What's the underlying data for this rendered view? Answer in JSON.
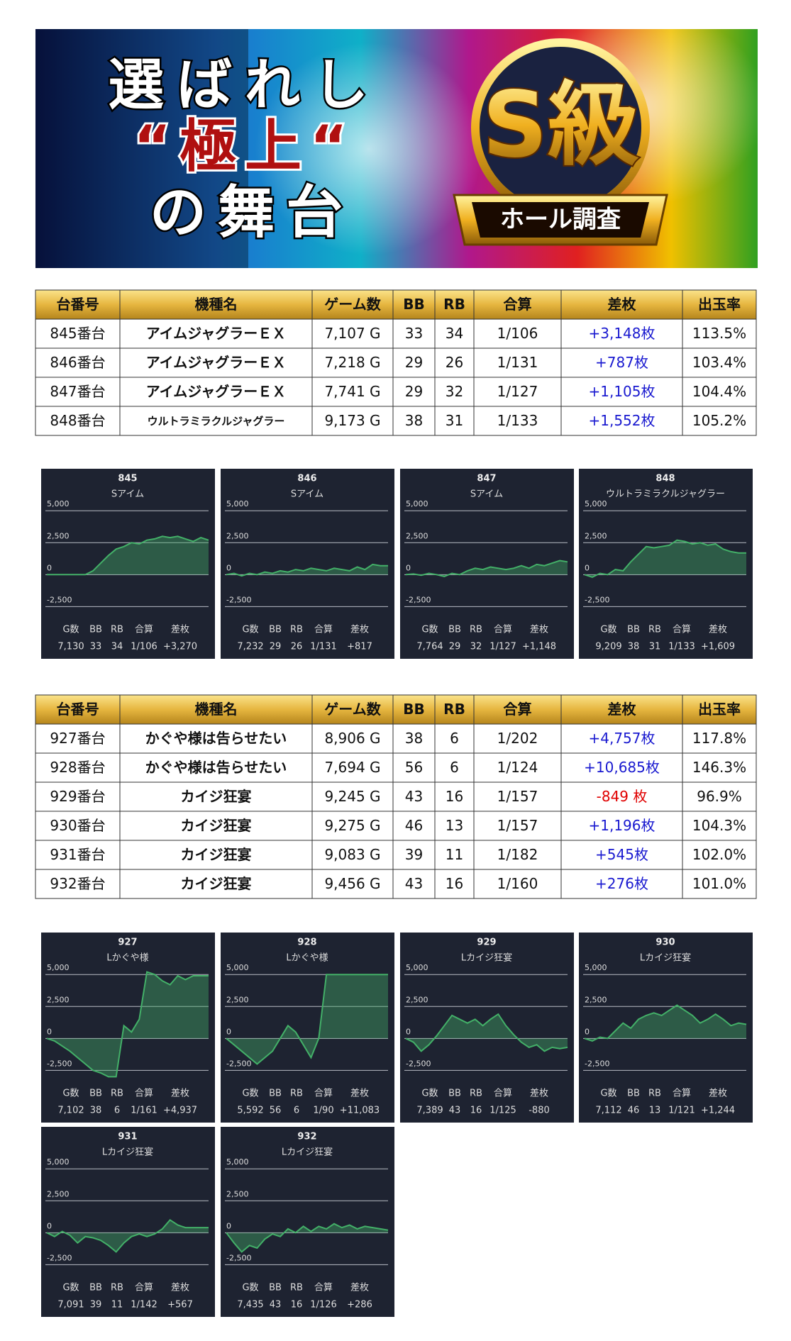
{
  "banner": {
    "title_lines": [
      "選ばれし",
      "“極上“",
      "の舞台"
    ],
    "badge": "S級",
    "badge_sub": "ホール調査"
  },
  "diff_colors": {
    "positive": "#1a1ad0",
    "negative": "#e00000"
  },
  "tables": [
    {
      "header": [
        "台番号",
        "機種名",
        "ゲーム数",
        "BB",
        "RB",
        "合算",
        "差枚",
        "出玉率"
      ],
      "rows": [
        [
          "845番台",
          "アイムジャグラーＥＸ",
          "7,107 G",
          "33",
          "34",
          "1/106",
          "+3,148枚",
          "113.5%"
        ],
        [
          "846番台",
          "アイムジャグラーＥＸ",
          "7,218 G",
          "29",
          "26",
          "1/131",
          "+787枚",
          "103.4%"
        ],
        [
          "847番台",
          "アイムジャグラーＥＸ",
          "7,741 G",
          "29",
          "32",
          "1/127",
          "+1,105枚",
          "104.4%"
        ],
        [
          "848番台",
          "ウルトラミラクルジャグラー",
          "9,173 G",
          "38",
          "31",
          "1/133",
          "+1,552枚",
          "105.2%"
        ]
      ]
    },
    {
      "header": [
        "台番号",
        "機種名",
        "ゲーム数",
        "BB",
        "RB",
        "合算",
        "差枚",
        "出玉率"
      ],
      "rows": [
        [
          "927番台",
          "かぐや様は告らせたい",
          "8,906 G",
          "38",
          "6",
          "1/202",
          "+4,757枚",
          "117.8%"
        ],
        [
          "928番台",
          "かぐや様は告らせたい",
          "7,694 G",
          "56",
          "6",
          "1/124",
          "+10,685枚",
          "146.3%"
        ],
        [
          "929番台",
          "カイジ狂宴",
          "9,245 G",
          "43",
          "16",
          "1/157",
          "-849 枚",
          "96.9%"
        ],
        [
          "930番台",
          "カイジ狂宴",
          "9,275 G",
          "46",
          "13",
          "1/157",
          "+1,196枚",
          "104.3%"
        ],
        [
          "931番台",
          "カイジ狂宴",
          "9,083 G",
          "39",
          "11",
          "1/182",
          "+545枚",
          "102.0%"
        ],
        [
          "932番台",
          "カイジ狂宴",
          "9,456 G",
          "43",
          "16",
          "1/160",
          "+276枚",
          "101.0%"
        ]
      ]
    }
  ],
  "chart_data": [
    {
      "type": "line",
      "title": "845",
      "subtitle": "Sアイム",
      "color": "#43b068",
      "ylim": [
        -3200,
        5400
      ],
      "yticks": [
        {
          "value": 5000,
          "label": "5,000"
        },
        {
          "value": 2500,
          "label": "2,500"
        },
        0,
        {
          "value": -2500,
          "label": "-2,500"
        }
      ],
      "values": [
        0,
        0,
        0,
        0,
        0,
        0,
        300,
        900,
        1500,
        2000,
        2200,
        2500,
        2400,
        2700,
        2800,
        3000,
        2900,
        3000,
        2800,
        2600,
        2900,
        2700
      ],
      "stats_header": [
        "G数",
        "BB",
        "RB",
        "合算",
        "差枚"
      ],
      "stats": [
        "7,130",
        "33",
        "34",
        "1/106",
        "+3,270"
      ]
    },
    {
      "type": "line",
      "title": "846",
      "subtitle": "Sアイム",
      "color": "#43b068",
      "ylim": [
        -3200,
        5400
      ],
      "yticks": [
        {
          "value": 5000,
          "label": "5,000"
        },
        {
          "value": 2500,
          "label": "2,500"
        },
        0,
        {
          "value": -2500,
          "label": "-2,500"
        }
      ],
      "values": [
        0,
        100,
        -100,
        100,
        0,
        200,
        100,
        300,
        200,
        400,
        300,
        500,
        400,
        300,
        500,
        400,
        300,
        600,
        400,
        800,
        700,
        700
      ],
      "stats_header": [
        "G数",
        "BB",
        "RB",
        "合算",
        "差枚"
      ],
      "stats": [
        "7,232",
        "29",
        "26",
        "1/131",
        "+817"
      ]
    },
    {
      "type": "line",
      "title": "847",
      "subtitle": "Sアイム",
      "color": "#43b068",
      "ylim": [
        -3200,
        5400
      ],
      "yticks": [
        {
          "value": 5000,
          "label": "5,000"
        },
        {
          "value": 2500,
          "label": "2,500"
        },
        0,
        {
          "value": -2500,
          "label": "-2,500"
        }
      ],
      "values": [
        0,
        50,
        -50,
        100,
        0,
        -150,
        100,
        0,
        300,
        500,
        400,
        600,
        500,
        400,
        500,
        700,
        500,
        800,
        700,
        900,
        1100,
        1000
      ],
      "stats_header": [
        "G数",
        "BB",
        "RB",
        "合算",
        "差枚"
      ],
      "stats": [
        "7,764",
        "29",
        "32",
        "1/127",
        "+1,148"
      ]
    },
    {
      "type": "line",
      "title": "848",
      "subtitle": "ウルトラミラクルジャグラー",
      "color": "#43b068",
      "ylim": [
        -3200,
        5400
      ],
      "yticks": [
        {
          "value": 5000,
          "label": "5,000"
        },
        {
          "value": 2500,
          "label": "2,500"
        },
        0,
        {
          "value": -2500,
          "label": "-2,500"
        }
      ],
      "values": [
        0,
        -200,
        100,
        0,
        400,
        300,
        1000,
        1600,
        2200,
        2100,
        2200,
        2300,
        2700,
        2600,
        2400,
        2500,
        2300,
        2400,
        2000,
        1800,
        1700,
        1700
      ],
      "stats_header": [
        "G数",
        "BB",
        "RB",
        "合算",
        "差枚"
      ],
      "stats": [
        "9,209",
        "38",
        "31",
        "1/133",
        "+1,609"
      ]
    },
    {
      "type": "line",
      "title": "927",
      "subtitle": "Lかぐや様",
      "color": "#43b068",
      "ylim": [
        -3200,
        5400
      ],
      "yticks": [
        {
          "value": 5000,
          "label": "5,000"
        },
        {
          "value": 2500,
          "label": "2,500"
        },
        0,
        {
          "value": -2500,
          "label": "-2,500"
        }
      ],
      "values": [
        0,
        -200,
        -600,
        -1000,
        -1500,
        -2000,
        -2500,
        -2700,
        -3000,
        -3000,
        1000,
        500,
        1500,
        5200,
        5000,
        4500,
        4200,
        4900,
        4600,
        4900,
        4900,
        4900
      ],
      "stats_header": [
        "G数",
        "BB",
        "RB",
        "合算",
        "差枚"
      ],
      "stats": [
        "7,102",
        "38",
        "6",
        "1/161",
        "+4,937"
      ]
    },
    {
      "type": "line",
      "title": "928",
      "subtitle": "Lかぐや様",
      "color": "#43b068",
      "ylim": [
        -3200,
        5400
      ],
      "yticks": [
        {
          "value": 5000,
          "label": "5,000"
        },
        {
          "value": 2500,
          "label": "2,500"
        },
        0,
        {
          "value": -2500,
          "label": "-2,500"
        }
      ],
      "values": [
        0,
        -500,
        -1000,
        -1500,
        -2000,
        -1500,
        -1000,
        0,
        1000,
        500,
        -500,
        -1500,
        0,
        5000,
        5000,
        5000,
        5000,
        5000,
        5000,
        5000,
        5000,
        5000
      ],
      "stats_header": [
        "G数",
        "BB",
        "RB",
        "合算",
        "差枚"
      ],
      "stats": [
        "5,592",
        "56",
        "6",
        "1/90",
        "+11,083"
      ]
    },
    {
      "type": "line",
      "title": "929",
      "subtitle": "Lカイジ狂宴",
      "color": "#43b068",
      "ylim": [
        -3200,
        5400
      ],
      "yticks": [
        {
          "value": 5000,
          "label": "5,000"
        },
        {
          "value": 2500,
          "label": "2,500"
        },
        0,
        {
          "value": -2500,
          "label": "-2,500"
        }
      ],
      "values": [
        0,
        -300,
        -1000,
        -500,
        200,
        1000,
        1800,
        1500,
        1200,
        1500,
        1000,
        1500,
        1900,
        1000,
        300,
        -300,
        -700,
        -500,
        -1000,
        -700,
        -800,
        -700
      ],
      "stats_header": [
        "G数",
        "BB",
        "RB",
        "合算",
        "差枚"
      ],
      "stats": [
        "7,389",
        "43",
        "16",
        "1/125",
        "-880"
      ]
    },
    {
      "type": "line",
      "title": "930",
      "subtitle": "Lカイジ狂宴",
      "color": "#43b068",
      "ylim": [
        -3200,
        5400
      ],
      "yticks": [
        {
          "value": 5000,
          "label": "5,000"
        },
        {
          "value": 2500,
          "label": "2,500"
        },
        0,
        {
          "value": -2500,
          "label": "-2,500"
        }
      ],
      "values": [
        0,
        -200,
        100,
        0,
        600,
        1200,
        800,
        1500,
        1800,
        2000,
        1800,
        2200,
        2600,
        2200,
        1800,
        1200,
        1500,
        1900,
        1500,
        1000,
        1200,
        1100
      ],
      "stats_header": [
        "G数",
        "BB",
        "RB",
        "合算",
        "差枚"
      ],
      "stats": [
        "7,112",
        "46",
        "13",
        "1/121",
        "+1,244"
      ]
    },
    {
      "type": "line",
      "title": "931",
      "subtitle": "Lカイジ狂宴",
      "color": "#43b068",
      "ylim": [
        -3200,
        5400
      ],
      "yticks": [
        {
          "value": 5000,
          "label": "5,000"
        },
        {
          "value": 2500,
          "label": "2,500"
        },
        0,
        {
          "value": -2500,
          "label": "-2,500"
        }
      ],
      "values": [
        0,
        -300,
        100,
        -200,
        -800,
        -300,
        -400,
        -600,
        -1000,
        -1500,
        -800,
        -300,
        -100,
        -300,
        -100,
        300,
        1000,
        600,
        400,
        400,
        400,
        400
      ],
      "stats_header": [
        "G数",
        "BB",
        "RB",
        "合算",
        "差枚"
      ],
      "stats": [
        "7,091",
        "39",
        "11",
        "1/142",
        "+567"
      ]
    },
    {
      "type": "line",
      "title": "932",
      "subtitle": "Lカイジ狂宴",
      "color": "#43b068",
      "ylim": [
        -3200,
        5400
      ],
      "yticks": [
        {
          "value": 5000,
          "label": "5,000"
        },
        {
          "value": 2500,
          "label": "2,500"
        },
        0,
        {
          "value": -2500,
          "label": "-2,500"
        }
      ],
      "values": [
        0,
        -800,
        -1500,
        -1000,
        -1200,
        -500,
        -100,
        -300,
        300,
        0,
        500,
        100,
        500,
        300,
        700,
        400,
        600,
        300,
        500,
        400,
        300,
        200
      ],
      "stats_header": [
        "G数",
        "BB",
        "RB",
        "合算",
        "差枚"
      ],
      "stats": [
        "7,435",
        "43",
        "16",
        "1/126",
        "+286"
      ]
    }
  ]
}
